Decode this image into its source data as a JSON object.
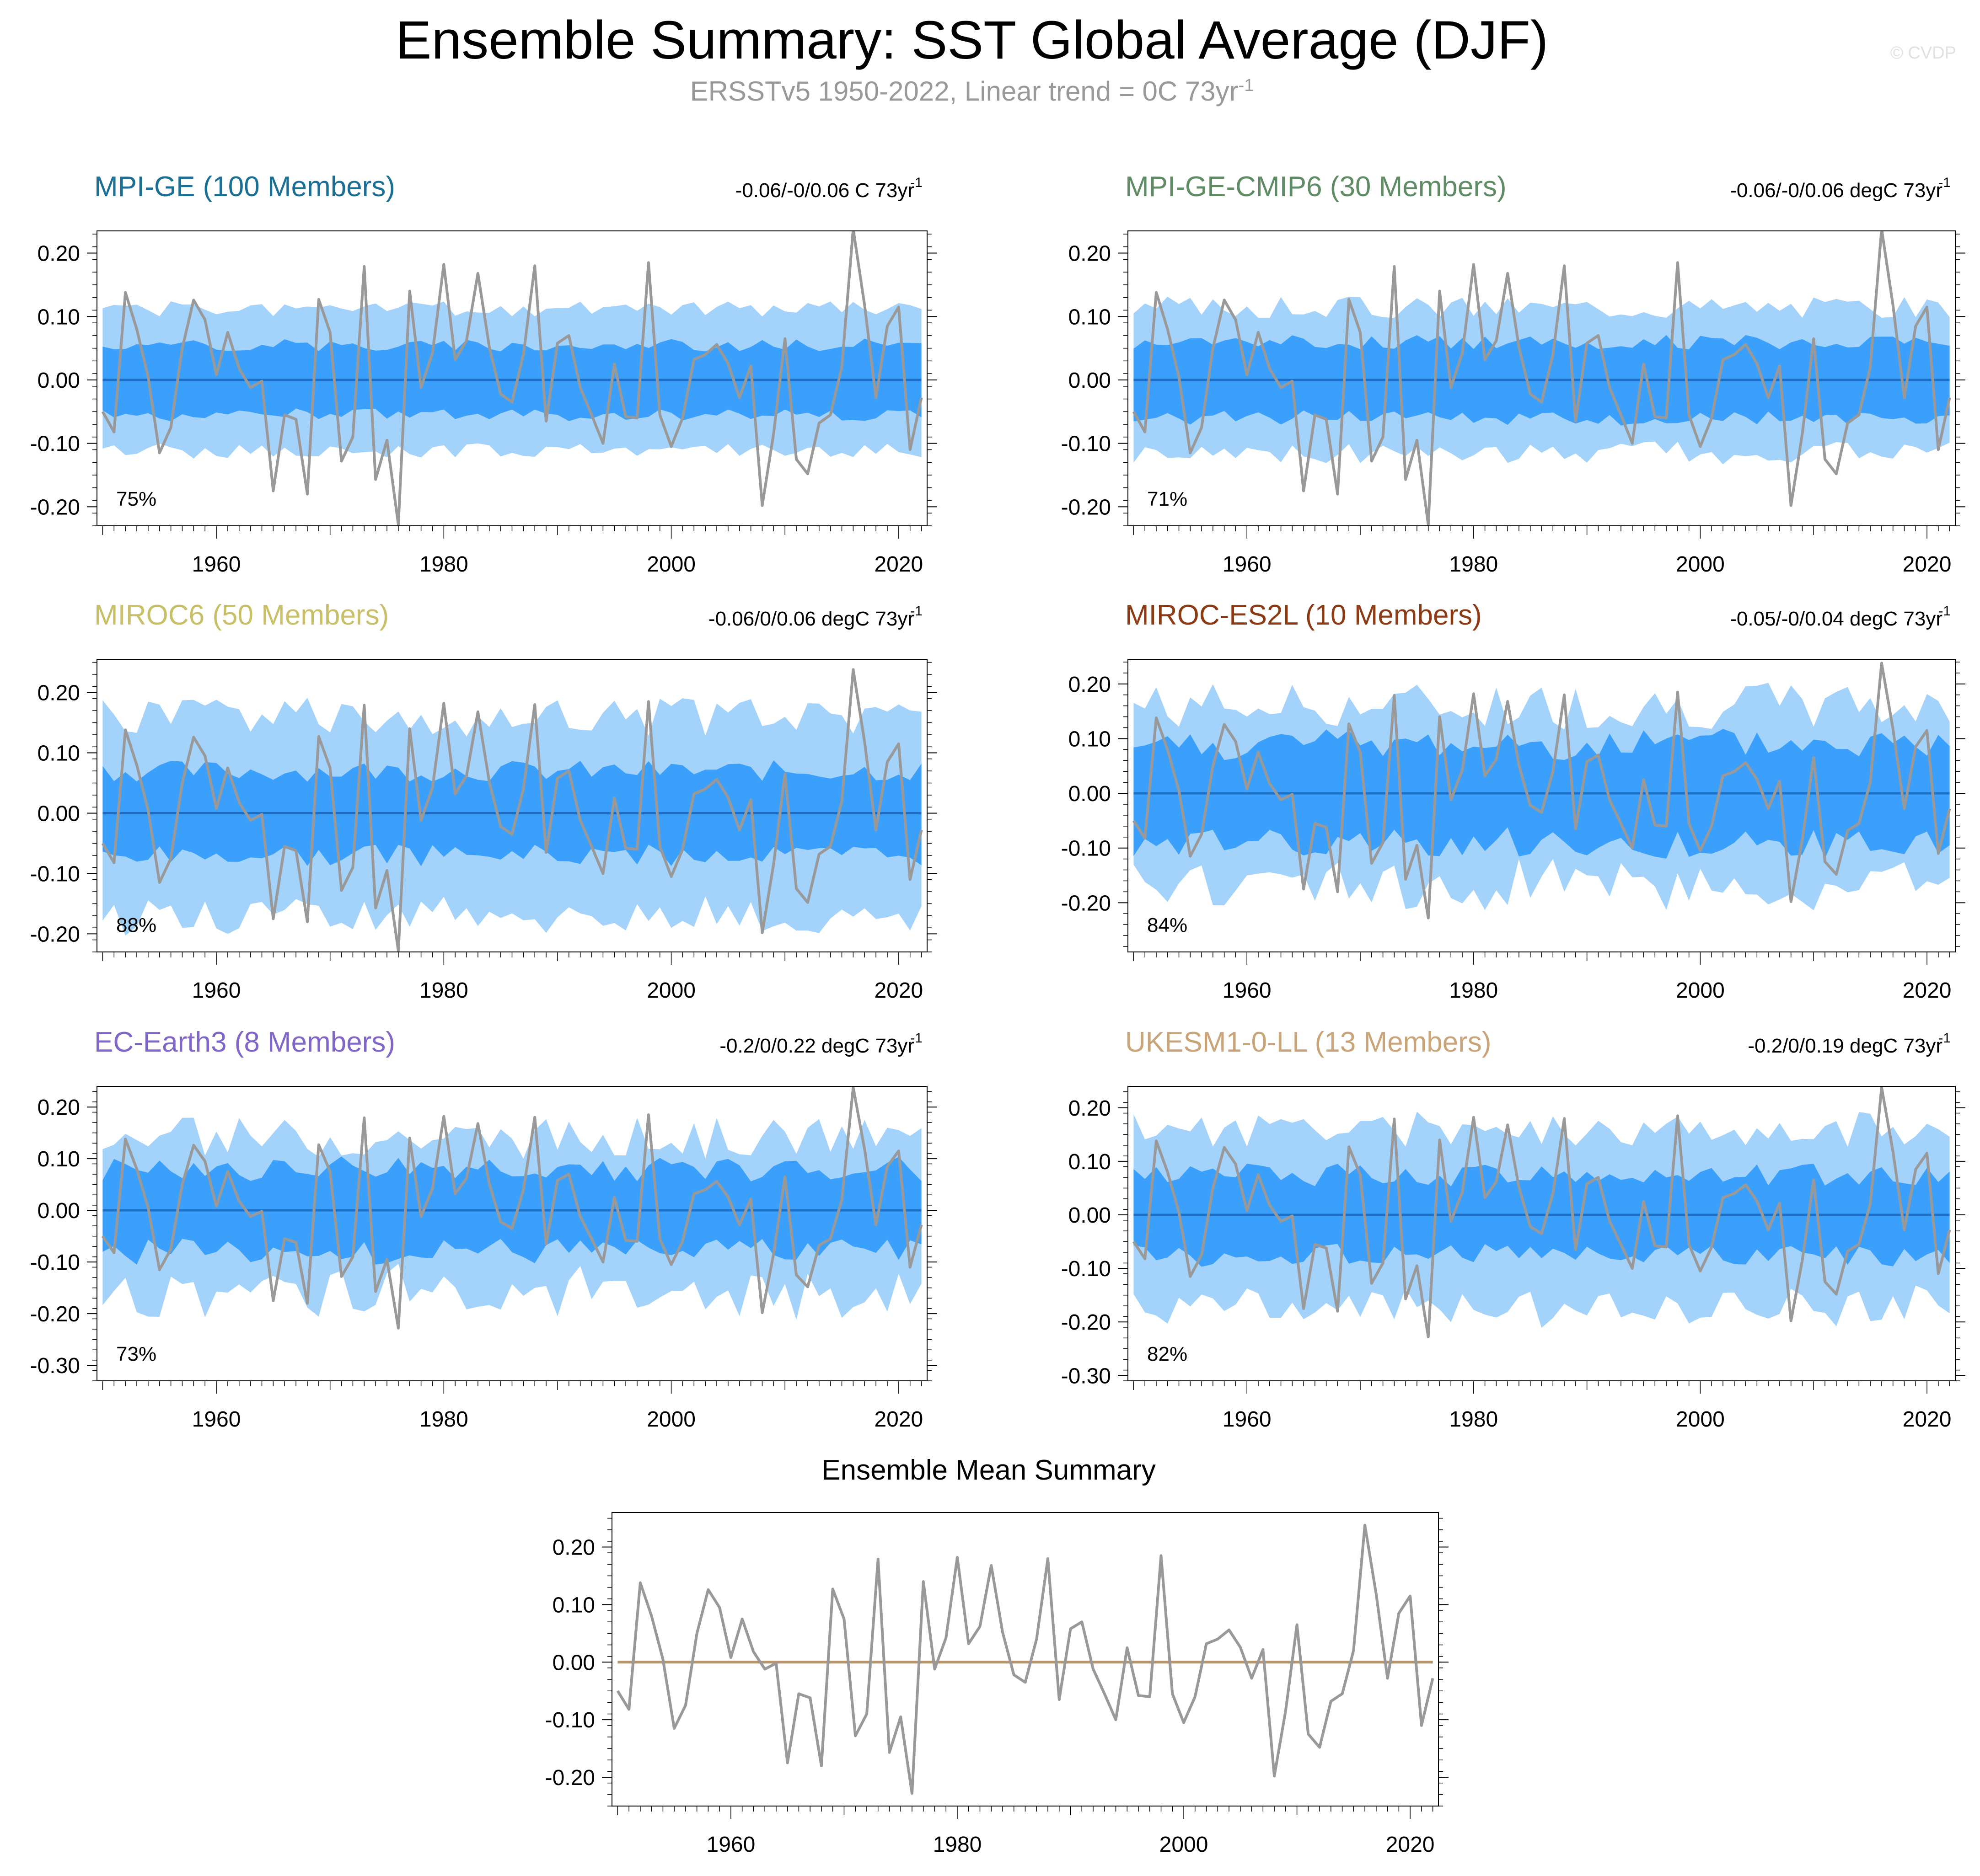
{
  "page": {
    "title": "Ensemble Summary: SST Global Average (DJF)",
    "subtitle": "ERSSTv5 1950-2022, Linear trend = 0C 73yr",
    "subtitle_sup": "-1",
    "copyright": "© CVDP"
  },
  "chart_data": [
    {
      "type": "area",
      "title": "MPI-GE (100 Members)",
      "title_color": "#1b6f94",
      "trend": "-0.06/-0/0.06 C 73yr",
      "trend_sup": "-1",
      "percent_label": "75%",
      "ylim": [
        -0.23,
        0.235
      ],
      "yticks": [
        0.2,
        0.1,
        0.0,
        -0.1,
        -0.2
      ],
      "ytick_labels": [
        "0.20",
        "0.10",
        "0.00",
        "-0.10",
        "-0.20"
      ],
      "xticks": [
        1960,
        1980,
        2000,
        2020
      ],
      "xlim": [
        1949.5,
        2022.5
      ],
      "band_outer": {
        "amp": 0.112,
        "var": 0.012,
        "extra": 0.0,
        "seed": 1
      },
      "band_inner": {
        "amp": 0.055,
        "var": 0.01,
        "seed": 2
      },
      "mean_line": 0.0
    },
    {
      "type": "area",
      "title": "MPI-GE-CMIP6 (30 Members)",
      "title_color": "#5f8c64",
      "trend": "-0.06/-0/0.06 degC 73yr",
      "trend_sup": "-1",
      "percent_label": "71%",
      "ylim": [
        -0.23,
        0.235
      ],
      "yticks": [
        0.2,
        0.1,
        0.0,
        -0.1,
        -0.2
      ],
      "ytick_labels": [
        "0.20",
        "0.10",
        "0.00",
        "-0.10",
        "-0.20"
      ],
      "xticks": [
        1960,
        1980,
        2000,
        2020
      ],
      "xlim": [
        1949.5,
        2022.5
      ],
      "band_outer": {
        "amp": 0.115,
        "var": 0.018,
        "extra": 0.0,
        "seed": 3
      },
      "band_inner": {
        "amp": 0.06,
        "var": 0.012,
        "seed": 4
      },
      "mean_line": 0.0
    },
    {
      "type": "area",
      "title": "MIROC6 (50 Members)",
      "title_color": "#c8c068",
      "trend": "-0.06/0/0.06 degC 73yr",
      "trend_sup": "-1",
      "percent_label": "88%",
      "ylim": [
        -0.23,
        0.255
      ],
      "yticks": [
        0.2,
        0.1,
        0.0,
        -0.1,
        -0.2
      ],
      "ytick_labels": [
        "0.20",
        "0.10",
        "0.00",
        "-0.10",
        "-0.20"
      ],
      "xticks": [
        1960,
        1980,
        2000,
        2020
      ],
      "xlim": [
        1949.5,
        2022.5
      ],
      "band_outer": {
        "amp": 0.16,
        "var": 0.035,
        "extra": 0.02,
        "seed": 5
      },
      "band_inner": {
        "amp": 0.07,
        "var": 0.018,
        "seed": 6
      },
      "mean_line": 0.0
    },
    {
      "type": "area",
      "title": "MIROC-ES2L (10 Members)",
      "title_color": "#8b3a14",
      "trend": "-0.05/-0/0.04 degC 73yr",
      "trend_sup": "-1",
      "percent_label": "84%",
      "ylim": [
        -0.29,
        0.245
      ],
      "yticks": [
        0.2,
        0.1,
        0.0,
        -0.1,
        -0.2
      ],
      "ytick_labels": [
        "0.20",
        "0.10",
        "0.00",
        "-0.10",
        "-0.20"
      ],
      "xticks": [
        1960,
        1980,
        2000,
        2020
      ],
      "xlim": [
        1949.5,
        2022.5
      ],
      "band_outer": {
        "amp": 0.16,
        "var": 0.045,
        "extra": 0.02,
        "seed": 7
      },
      "band_inner": {
        "amp": 0.09,
        "var": 0.03,
        "seed": 8
      },
      "mean_line": 0.0
    },
    {
      "type": "area",
      "title": "EC-Earth3 (8 Members)",
      "title_color": "#8066c8",
      "trend": "-0.2/0/0.22 degC 73yr",
      "trend_sup": "-1",
      "percent_label": "73%",
      "ylim": [
        -0.33,
        0.24
      ],
      "yticks": [
        0.2,
        0.1,
        0.0,
        -0.1,
        -0.2,
        -0.3
      ],
      "ytick_labels": [
        "0.20",
        "0.10",
        "0.00",
        "-0.10",
        "-0.20",
        "-0.30"
      ],
      "xticks": [
        1960,
        1980,
        2000,
        2020
      ],
      "xlim": [
        1949.5,
        2022.5
      ],
      "band_outer": {
        "amp": 0.14,
        "var": 0.04,
        "extra": 0.04,
        "seed": 9
      },
      "band_inner": {
        "amp": 0.08,
        "var": 0.025,
        "seed": 10
      },
      "mean_line": 0.0
    },
    {
      "type": "area",
      "title": "UKESM1-0-LL (13 Members)",
      "title_color": "#c8a478",
      "trend": "-0.2/0/0.19 degC 73yr",
      "trend_sup": "-1",
      "percent_label": "82%",
      "ylim": [
        -0.31,
        0.24
      ],
      "yticks": [
        0.2,
        0.1,
        0.0,
        -0.1,
        -0.2,
        -0.3
      ],
      "ytick_labels": [
        "0.20",
        "0.10",
        "0.00",
        "-0.10",
        "-0.20",
        "-0.30"
      ],
      "xticks": [
        1960,
        1980,
        2000,
        2020
      ],
      "xlim": [
        1949.5,
        2022.5
      ],
      "band_outer": {
        "amp": 0.16,
        "var": 0.035,
        "extra": 0.02,
        "seed": 11
      },
      "band_inner": {
        "amp": 0.075,
        "var": 0.022,
        "seed": 12
      },
      "mean_line": 0.0
    },
    {
      "type": "line",
      "title": "Ensemble Mean Summary",
      "ylim": [
        -0.25,
        0.26
      ],
      "yticks": [
        0.2,
        0.1,
        0.0,
        -0.1,
        -0.2
      ],
      "ytick_labels": [
        "0.20",
        "0.10",
        "0.00",
        "-0.10",
        "-0.20"
      ],
      "xticks": [
        1960,
        1980,
        2000,
        2020
      ],
      "xlim": [
        1949.5,
        2022.5
      ],
      "mean_line": 0.0,
      "mean_line_color": "#b8946a"
    }
  ],
  "observed_series": {
    "name": "ERSSTv5",
    "color": "#999999",
    "years_start": 1950,
    "values": [
      -0.05,
      -0.082,
      0.138,
      0.08,
      0.005,
      -0.115,
      -0.075,
      0.05,
      0.126,
      0.095,
      0.008,
      0.075,
      0.018,
      -0.012,
      -0.002,
      -0.175,
      -0.055,
      -0.062,
      -0.18,
      0.127,
      0.075,
      -0.128,
      -0.09,
      0.179,
      -0.157,
      -0.095,
      -0.228,
      0.14,
      -0.012,
      0.042,
      0.182,
      0.032,
      0.062,
      0.168,
      0.052,
      -0.022,
      -0.035,
      0.04,
      0.18,
      -0.065,
      0.058,
      0.07,
      -0.012,
      -0.055,
      -0.1,
      0.025,
      -0.058,
      -0.06,
      0.185,
      -0.055,
      -0.105,
      -0.06,
      0.032,
      0.04,
      0.056,
      0.026,
      -0.028,
      0.022,
      -0.198,
      -0.085,
      0.065,
      -0.125,
      -0.148,
      -0.068,
      -0.055,
      0.02,
      0.238,
      0.118,
      -0.028,
      0.085,
      0.115,
      -0.11,
      -0.028
    ]
  }
}
